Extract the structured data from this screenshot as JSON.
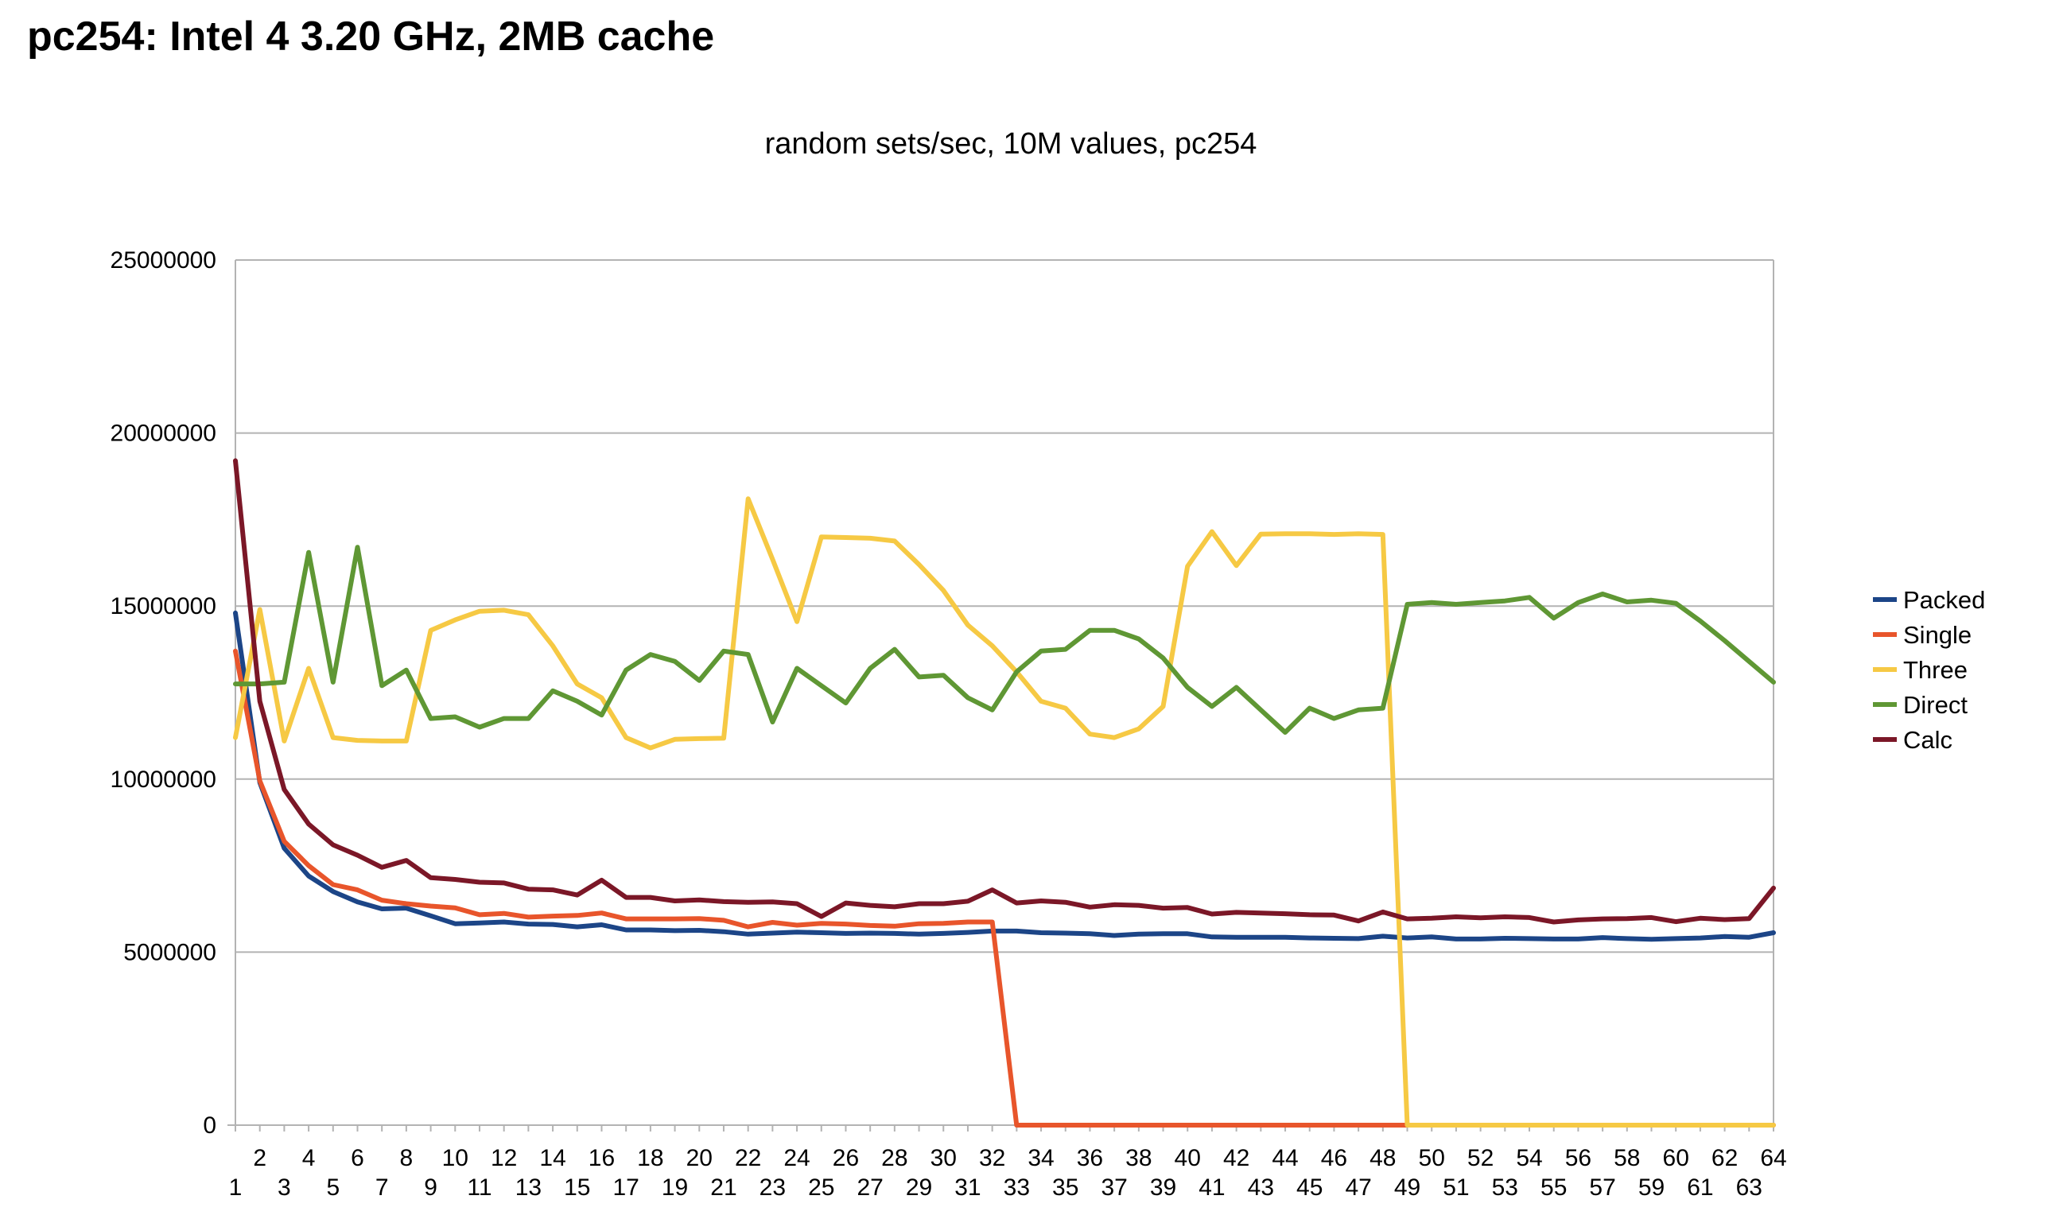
{
  "page": {
    "title": "pc254: Intel 4 3.20 GHz, 2MB cache"
  },
  "chart_data": {
    "type": "line",
    "title": "random sets/sec, 10M values, pc254",
    "xlabel": "",
    "ylabel": "",
    "ylim": [
      0,
      25000000
    ],
    "yticks": [
      0,
      5000000,
      10000000,
      15000000,
      20000000,
      25000000
    ],
    "grid": true,
    "legend_position": "right",
    "categories": [
      1,
      2,
      3,
      4,
      5,
      6,
      7,
      8,
      9,
      10,
      11,
      12,
      13,
      14,
      15,
      16,
      17,
      18,
      19,
      20,
      21,
      22,
      23,
      24,
      25,
      26,
      27,
      28,
      29,
      30,
      31,
      32,
      33,
      34,
      35,
      36,
      37,
      38,
      39,
      40,
      41,
      42,
      43,
      44,
      45,
      46,
      47,
      48,
      49,
      50,
      51,
      52,
      53,
      54,
      55,
      56,
      57,
      58,
      59,
      60,
      61,
      62,
      63,
      64
    ],
    "series": [
      {
        "name": "Packed",
        "color": "#1c4587",
        "values": [
          14800000,
          9900000,
          8000000,
          7200000,
          6750000,
          6450000,
          6250000,
          6270000,
          6050000,
          5820000,
          5840000,
          5870000,
          5810000,
          5800000,
          5730000,
          5790000,
          5640000,
          5640000,
          5620000,
          5630000,
          5590000,
          5520000,
          5550000,
          5580000,
          5560000,
          5540000,
          5550000,
          5540000,
          5520000,
          5540000,
          5570000,
          5610000,
          5610000,
          5560000,
          5550000,
          5530000,
          5480000,
          5520000,
          5530000,
          5530000,
          5440000,
          5430000,
          5430000,
          5430000,
          5410000,
          5400000,
          5390000,
          5460000,
          5410000,
          5440000,
          5380000,
          5380000,
          5400000,
          5390000,
          5380000,
          5380000,
          5420000,
          5390000,
          5370000,
          5390000,
          5410000,
          5450000,
          5430000,
          5560000
        ]
      },
      {
        "name": "Single",
        "color": "#e8552b",
        "values": [
          13700000,
          9950000,
          8200000,
          7500000,
          6950000,
          6800000,
          6500000,
          6400000,
          6330000,
          6280000,
          6080000,
          6120000,
          6010000,
          6040000,
          6060000,
          6130000,
          5960000,
          5960000,
          5960000,
          5970000,
          5920000,
          5730000,
          5860000,
          5780000,
          5830000,
          5810000,
          5770000,
          5750000,
          5820000,
          5830000,
          5870000,
          5870000,
          0,
          0,
          0,
          0,
          0,
          0,
          0,
          0,
          0,
          0,
          0,
          0,
          0,
          0,
          0,
          0,
          0,
          0,
          0,
          0,
          0,
          0,
          0,
          0,
          0,
          0,
          0,
          0,
          0,
          0,
          0,
          0
        ]
      },
      {
        "name": "Three",
        "color": "#f6c944",
        "values": [
          11200000,
          14900000,
          11100000,
          13200000,
          11200000,
          11120000,
          11100000,
          11100000,
          14300000,
          14600000,
          14850000,
          14880000,
          14750000,
          13850000,
          12750000,
          12350000,
          11200000,
          10900000,
          11150000,
          11170000,
          11180000,
          18100000,
          16350000,
          14550000,
          17000000,
          16980000,
          16960000,
          16880000,
          16200000,
          15450000,
          14450000,
          13850000,
          13100000,
          12250000,
          12050000,
          11300000,
          11200000,
          11450000,
          12100000,
          16150000,
          17150000,
          16170000,
          17080000,
          17090000,
          17090000,
          17070000,
          17090000,
          17070000,
          0,
          0,
          0,
          0,
          0,
          0,
          0,
          0,
          0,
          0,
          0,
          0,
          0,
          0,
          0,
          0
        ]
      },
      {
        "name": "Direct",
        "color": "#5f9734",
        "values": [
          12750000,
          12750000,
          12800000,
          16550000,
          12800000,
          16700000,
          12700000,
          13150000,
          11750000,
          11800000,
          11500000,
          11750000,
          11750000,
          12550000,
          12250000,
          11850000,
          13150000,
          13600000,
          13400000,
          12850000,
          13700000,
          13600000,
          11650000,
          13200000,
          12700000,
          12200000,
          13200000,
          13750000,
          12950000,
          13000000,
          12350000,
          12000000,
          13100000,
          13700000,
          13750000,
          14300000,
          14300000,
          14050000,
          13500000,
          12650000,
          12100000,
          12650000,
          12000000,
          11350000,
          12050000,
          11750000,
          12000000,
          12050000,
          15050000,
          15100000,
          15050000,
          15100000,
          15150000,
          15250000,
          14650000,
          15100000,
          15350000,
          15120000,
          15170000,
          15080000,
          14570000,
          14000000,
          13400000,
          12800000
        ]
      },
      {
        "name": "Calc",
        "color": "#7b1727",
        "values": [
          19200000,
          12250000,
          9700000,
          8700000,
          8100000,
          7800000,
          7450000,
          7650000,
          7150000,
          7100000,
          7020000,
          7000000,
          6820000,
          6800000,
          6650000,
          7080000,
          6580000,
          6580000,
          6480000,
          6510000,
          6460000,
          6440000,
          6450000,
          6400000,
          6030000,
          6420000,
          6350000,
          6310000,
          6400000,
          6400000,
          6470000,
          6800000,
          6420000,
          6480000,
          6440000,
          6300000,
          6370000,
          6350000,
          6270000,
          6290000,
          6100000,
          6150000,
          6130000,
          6110000,
          6080000,
          6070000,
          5900000,
          6160000,
          5960000,
          5980000,
          6020000,
          5990000,
          6020000,
          6000000,
          5870000,
          5930000,
          5960000,
          5970000,
          6000000,
          5880000,
          5980000,
          5940000,
          5970000,
          6850000
        ]
      }
    ]
  }
}
